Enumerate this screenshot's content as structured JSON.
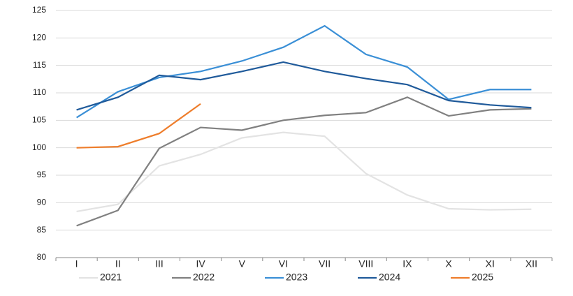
{
  "chart_data": {
    "type": "line",
    "categories": [
      "I",
      "II",
      "III",
      "IV",
      "V",
      "VI",
      "VII",
      "VIII",
      "IX",
      "X",
      "XI",
      "XII"
    ],
    "series": [
      {
        "name": "2021",
        "color": "#e3e3e3",
        "values": [
          88.4,
          89.7,
          96.7,
          98.8,
          101.8,
          102.8,
          102.1,
          95.3,
          91.4,
          88.9,
          88.7,
          88.8
        ]
      },
      {
        "name": "2022",
        "color": "#808080",
        "values": [
          85.8,
          88.6,
          99.9,
          103.7,
          103.2,
          105.0,
          105.9,
          106.4,
          109.2,
          105.8,
          106.9,
          107.1
        ]
      },
      {
        "name": "2023",
        "color": "#3a8fd6",
        "values": [
          105.5,
          110.2,
          112.8,
          113.9,
          115.8,
          118.3,
          122.2,
          117.0,
          114.7,
          108.8,
          110.6,
          110.6
        ]
      },
      {
        "name": "2024",
        "color": "#1f5a9a",
        "values": [
          106.9,
          109.2,
          113.2,
          112.4,
          113.9,
          115.6,
          113.9,
          112.6,
          111.5,
          108.6,
          107.8,
          107.3
        ]
      },
      {
        "name": "2025",
        "color": "#ee7d2b",
        "values": [
          100.0,
          100.2,
          102.6,
          108.0,
          null,
          null,
          null,
          null,
          null,
          null,
          null,
          null
        ]
      }
    ],
    "ylim": [
      80,
      125
    ],
    "yticks": [
      80,
      85,
      90,
      95,
      100,
      105,
      110,
      115,
      120,
      125
    ],
    "grid": true
  }
}
